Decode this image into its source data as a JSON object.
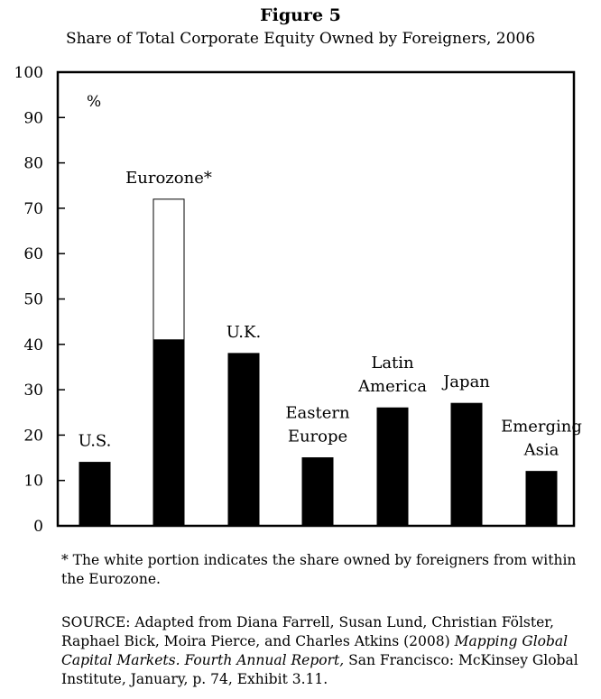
{
  "figure": {
    "label": "Figure 5",
    "subtitle": "Share of Total Corporate Equity Owned by Foreigners, 2006"
  },
  "chart_data": {
    "type": "bar",
    "stacked": true,
    "title": "Share of Total Corporate Equity Owned by Foreigners, 2006",
    "unit_label": "%",
    "ylim": [
      0,
      100
    ],
    "yticks": [
      0,
      10,
      20,
      30,
      40,
      50,
      60,
      70,
      80,
      90,
      100
    ],
    "categories": [
      {
        "key": "us",
        "lines": [
          "U.S."
        ]
      },
      {
        "key": "eurozone",
        "lines": [
          "Eurozone*"
        ]
      },
      {
        "key": "uk",
        "lines": [
          "U.K."
        ]
      },
      {
        "key": "eastern-europe",
        "lines": [
          "Eastern",
          "Europe"
        ]
      },
      {
        "key": "latin-america",
        "lines": [
          "Latin",
          "America"
        ]
      },
      {
        "key": "japan",
        "lines": [
          "Japan"
        ]
      },
      {
        "key": "emerging-asia",
        "lines": [
          "Emerging",
          "Asia"
        ]
      }
    ],
    "series": [
      {
        "name": "Owned by foreigners",
        "color": "#000000",
        "values": [
          14,
          41,
          38,
          15,
          26,
          27,
          12
        ]
      },
      {
        "name": "Owned by foreigners from within the Eurozone",
        "color": "#ffffff",
        "values": [
          0,
          31,
          0,
          0,
          0,
          0,
          0
        ]
      }
    ],
    "grid": false,
    "legend": "none"
  },
  "footnote": "* The white portion indicates the share owned by foreigners from within the Eurozone.",
  "source": {
    "prefix": "SOURCE: Adapted from Diana Farrell, Susan Lund, Christian Fölster, Raphael Bick, Moira Pierce, and Charles Atkins (2008) ",
    "title_italic": "Mapping Global Capital Markets. Fourth Annual Report,",
    "suffix": " San Francisco: McKinsey Global Institute, January, p. 74, Exhibit 3.11."
  }
}
